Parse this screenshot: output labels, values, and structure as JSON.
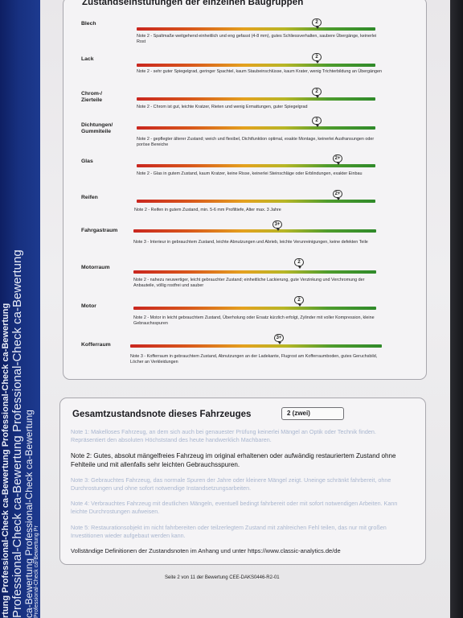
{
  "strip": {
    "rows": [
      "Professional-Check  ca-Bewertung Pr",
      "ca-Bewertung  Professional-Check  ca-Bewertung",
      "Professional-Check  ca-Bewertung  Professional-Check  ca-Bewertung",
      "rtung  Professional-Check  ca-Bewertung  Professional-Check  ca-Bewertung"
    ]
  },
  "section_title": "Zustandseinstufungen der einzelnen Baugruppen",
  "groups": [
    {
      "label": "Blech",
      "marker": "2",
      "note": "Note 2 - Spaltmaße weitgehend einheitlich und eng gefasst (4-8 mm), gutes Schliessverhalten, saubere Übergänge, keinerlei Rost"
    },
    {
      "label": "Lack",
      "marker": "2",
      "note": "Note 2 - sehr guter Spiegelgrad, geringer Spachtel, kaum Staubeinschlüsse, kaum Krater, wenig Trichterbildung an Übergängen"
    },
    {
      "label": "Chrom-/ Zierteile",
      "marker": "2",
      "note": "Note 2 - Chrom ist gut, leichte Kratzer, Rieten und wenig Ermattungen, guter Spiegelgrad"
    },
    {
      "label": "Dichtungen/ Gummiteile",
      "marker": "2",
      "note": "Note 2 - gepflegter älterer Zustand; weich und flexibel, Dichtfunktion optimal, exakte Montage, keinerlei Ausfransungen oder poröse Bereiche"
    },
    {
      "label": "Glas",
      "marker": "2+",
      "note": "Note 2 - Glas in gutem Zustand, kaum Kratzer, keine Risse, keinerlei Steinschläge oder Erblindungen, exakter Einbau"
    },
    {
      "label": "Reifen",
      "marker": "2+",
      "note": "Note 2 - Reifen in gutem Zustand, min. 5-6 mm Profiltiefe, Alter max. 3 Jahre"
    },
    {
      "label": "Fahrgastraum",
      "marker": "3+",
      "note": "Note 3 - Interieur in gebrauchtem Zustand, leichte Abnutzungen und Abrieb, leichte Verunreinigungen, keine defekten Teile"
    },
    {
      "label": "Motorraum",
      "marker": "2",
      "note": "Note 2 - nahezu neuwertiger, leicht gebrauchter Zustand; einheitliche Lackierung, gute Verzinkung und Verchromung der Anbauteile, völlig rostfrei und sauber"
    },
    {
      "label": "Motor",
      "marker": "2",
      "note": "Note 2 - Motor in leicht gebrauchtem Zustand, Überholung oder Ersatz kürzlich erfolgt, Zylinder mit voller Kompression, kleine Gebrauchsspuren"
    },
    {
      "label": "Kofferraum",
      "marker": "3+",
      "note": "Note 3 - Kofferraum in gebrauchtem Zustand, Abnutzungen an der Ladekante, Flugrost am Kofferraumboden, gutes Geruchsbild, Löcher an Verkleidungen"
    }
  ],
  "overall": {
    "title": "Gesamtzustandsnote dieses Fahrzeuges",
    "value": "2 (zwei)",
    "definitions": [
      "Note 1: Makelloses Fahrzeug, an dem sich auch bei genauester Prüfung keinerlei Mängel an Optik oder Technik finden. Repräsentiert den absoluten Höchststand des heute handwerklich Machbaren.",
      "Note 2: Gutes, absolut mängelfreies Fahrzeug im original erhaltenen oder aufwändig restauriertem Zustand ohne Fehlteile und mit allenfalls sehr leichten Gebrauchsspuren.",
      "Note 3: Gebrauchtes Fahrzeug, das normale Spuren der Jahre oder kleinere Mängel zeigt. Uneinge schränkt fahrbereit, ohne Durchrostungen und ohne sofort notwendige Instandsetzungsarbeiten.",
      "Note 4: Verbrauchtes Fahrzeug mit deutlichen Mängeln, eventuell bedingt fahrbereit oder mit sofort notwendigen Arbeiten. Kann leichte Durchrostungen aufweisen.",
      "Note 5: Restaurationsobjekt im nicht fahrbereiten oder teilzerlegtem Zustand mit zahlreichen Fehl teilen, das nur mit großen Investitionen wieder aufgebaut werden kann."
    ],
    "full_definitions": "Vollständige Definitionen der Zustandsnoten im Anhang und unter https://www.classic-analytics.de/de"
  },
  "footer": "Seite 2 von 11 der Bewertung CEE-DAKS0446-R2-01"
}
